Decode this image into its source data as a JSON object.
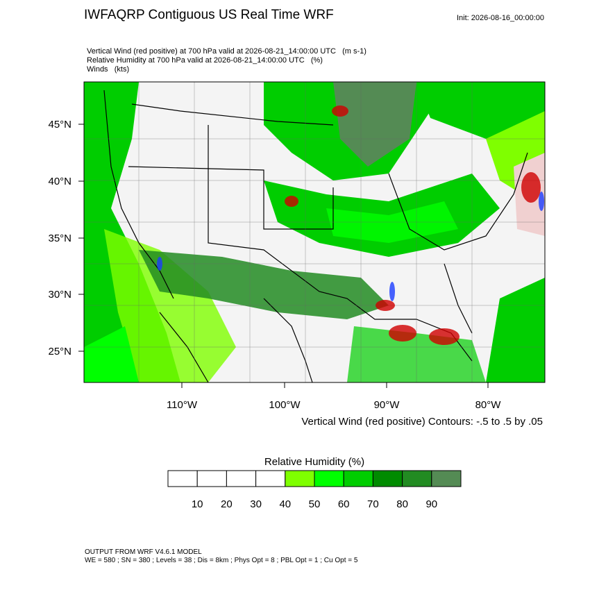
{
  "header": {
    "title": "IWFAQRP Contiguous US Real Time WRF",
    "init": "Init: 2026-08-16_00:00:00"
  },
  "fields": [
    "Vertical Wind (red positive) at 700 hPa valid at 2026-08-21_14:00:00 UTC   (m s-1)",
    "Relative Humidity at 700 hPa valid at 2026-08-21_14:00:00 UTC   (%)",
    "Winds   (kts)"
  ],
  "map": {
    "lat_labels": [
      "45°N",
      "40°N",
      "35°N",
      "30°N",
      "25°N"
    ],
    "lon_labels": [
      "110°W",
      "100°W",
      "90°W",
      "80°W"
    ],
    "contour_note": "Vertical Wind (red positive) Contours: -.5 to .5 by .05"
  },
  "colorbar": {
    "title": "Relative Humidity  (%)",
    "ticks": [
      10,
      20,
      30,
      40,
      50,
      60,
      70,
      80,
      90
    ],
    "colors": [
      "#ffffff",
      "#ffffff",
      "#ffffff",
      "#ffffff",
      "#7fff00",
      "#00ff00",
      "#00cd00",
      "#008b00",
      "#228b22",
      "#548b54"
    ]
  },
  "footer": {
    "line1": "OUTPUT FROM WRF V4.6.1 MODEL",
    "line2": "WE = 580 ; SN = 380 ; Levels = 38 ; Dis = 8km ; Phys Opt = 8 ; PBL Opt = 1 ; Cu Opt = 5"
  }
}
